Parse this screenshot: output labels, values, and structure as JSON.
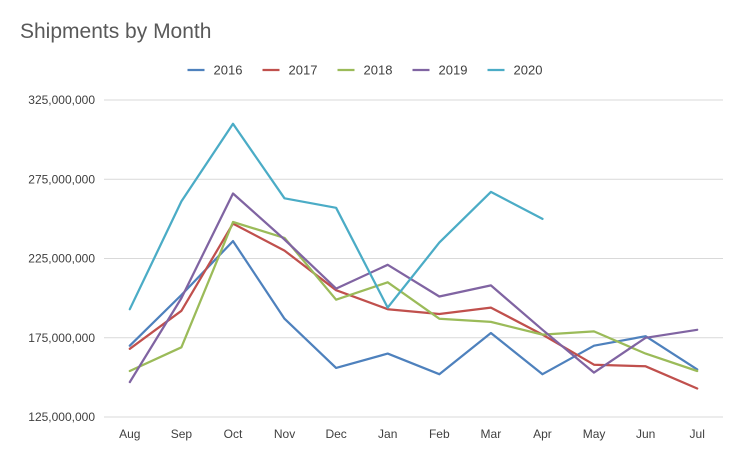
{
  "chart_data": {
    "type": "line",
    "title": "Shipments by Month",
    "xlabel": "",
    "ylabel": "",
    "categories": [
      "Aug",
      "Sep",
      "Oct",
      "Nov",
      "Dec",
      "Jan",
      "Feb",
      "Mar",
      "Apr",
      "May",
      "Jun",
      "Jul"
    ],
    "ylim": [
      125000000,
      325000000
    ],
    "yticks": [
      125000000,
      175000000,
      225000000,
      275000000,
      325000000
    ],
    "ytick_labels": [
      "125,000,000",
      "175,000,000",
      "225,000,000",
      "275,000,000",
      "325,000,000"
    ],
    "grid": true,
    "legend_position": "top",
    "series": [
      {
        "name": "2016",
        "color": "#4e81bd",
        "values": [
          170000000,
          202000000,
          236000000,
          187000000,
          156000000,
          165000000,
          152000000,
          178000000,
          152000000,
          170000000,
          176000000,
          155000000
        ]
      },
      {
        "name": "2017",
        "color": "#c0504d",
        "values": [
          168000000,
          192000000,
          247000000,
          230000000,
          205000000,
          193000000,
          190000000,
          194000000,
          177000000,
          158000000,
          157000000,
          143000000
        ]
      },
      {
        "name": "2018",
        "color": "#9bbb59",
        "values": [
          154000000,
          169000000,
          248000000,
          238000000,
          199000000,
          210000000,
          187000000,
          185000000,
          177000000,
          179000000,
          165000000,
          154000000
        ]
      },
      {
        "name": "2019",
        "color": "#8064a2",
        "values": [
          147000000,
          200000000,
          266000000,
          237000000,
          206000000,
          221000000,
          201000000,
          208000000,
          180000000,
          153000000,
          175000000,
          180000000
        ]
      },
      {
        "name": "2020",
        "color": "#4bacc6",
        "values": [
          193000000,
          261000000,
          310000000,
          263000000,
          257000000,
          194000000,
          235000000,
          267000000,
          250000000,
          null,
          null,
          null
        ]
      }
    ]
  }
}
